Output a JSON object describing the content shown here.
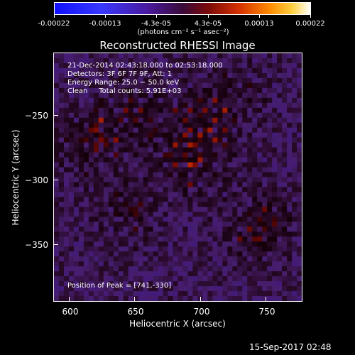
{
  "colorbar": {
    "tick_labels": [
      "-0.00022",
      "-0.00013",
      "-4.3e-05",
      "4.3e-05",
      "0.00013",
      "0.00022"
    ],
    "unit_label": "(photons cm⁻² s⁻¹ asec⁻²)",
    "range": [
      -0.00022,
      0.00022
    ]
  },
  "chart_data": {
    "type": "heatmap",
    "title": "Reconstructed RHESSI Image",
    "xlabel": "Heliocentric X (arcsec)",
    "ylabel": "Heliocentric Y (arcsec)",
    "xlim": [
      588,
      777
    ],
    "ylim": [
      -396,
      -207
    ],
    "xticks": [
      "600",
      "650",
      "700",
      "750"
    ],
    "yticks": [
      "−250",
      "−300",
      "−350"
    ],
    "info": {
      "time_range": "21-Dec-2014 02:43:18.000 to 02:53:18.000",
      "detectors": "Detectors: 3F 6F 7F 9F, Att: 1",
      "energy_range": "Energy Range: 25.0 − 50.0 keV",
      "method_counts": "Clean     Total counts: 5.91E+03",
      "peak_position": "Position of Peak = [741,-330]"
    },
    "peak": [
      741,
      -330
    ]
  },
  "footer": {
    "datestamp": "15-Sep-2017 02:48"
  }
}
